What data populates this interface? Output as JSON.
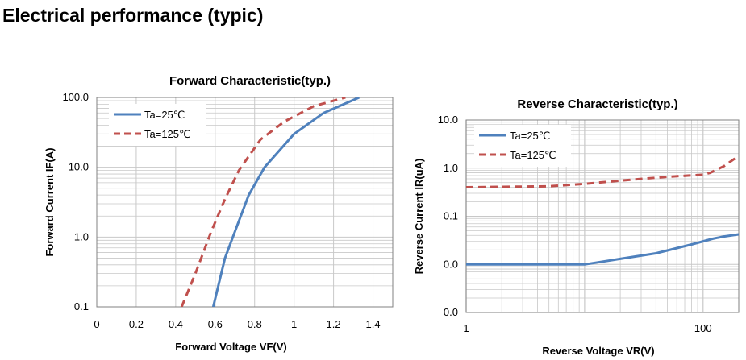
{
  "page": {
    "heading": "Electrical performance (typic)"
  },
  "colors": {
    "ta25": "#4f81bd",
    "ta125": "#c0504d",
    "grid": "#c8c8c8",
    "axis": "#808080"
  },
  "chart_data": [
    {
      "type": "line",
      "title": "Forward Characteristic(typ.)",
      "xlabel": "Forward Voltage VF(V)",
      "ylabel": "Forward Current IF(A)",
      "xscale": "linear",
      "yscale": "log",
      "xlim": [
        0,
        1.5
      ],
      "ylim": [
        0.1,
        100
      ],
      "xticks": [
        {
          "v": 0,
          "label": "0"
        },
        {
          "v": 0.2,
          "label": "0.2"
        },
        {
          "v": 0.4,
          "label": "0.4"
        },
        {
          "v": 0.6,
          "label": "0.6"
        },
        {
          "v": 0.8,
          "label": "0.8"
        },
        {
          "v": 1.0,
          "label": "1"
        },
        {
          "v": 1.2,
          "label": "1.2"
        },
        {
          "v": 1.4,
          "label": "1.4"
        }
      ],
      "yticks": [
        {
          "v": 0.1,
          "label": "0.1"
        },
        {
          "v": 1,
          "label": "1.0"
        },
        {
          "v": 10,
          "label": "10.0"
        },
        {
          "v": 100,
          "label": "100.0"
        }
      ],
      "grid": true,
      "legend": "top-left",
      "series": [
        {
          "name": "Ta=25℃",
          "style": "solid",
          "color": "#4f81bd",
          "x": [
            0.59,
            0.65,
            0.7,
            0.77,
            0.85,
            1.0,
            1.15,
            1.33
          ],
          "y": [
            0.1,
            0.5,
            1.2,
            4.0,
            10,
            30,
            60,
            100
          ]
        },
        {
          "name": "Ta=125℃",
          "style": "dashed",
          "color": "#c0504d",
          "x": [
            0.43,
            0.5,
            0.58,
            0.65,
            0.72,
            0.83,
            0.95,
            1.1,
            1.26
          ],
          "y": [
            0.1,
            0.3,
            1.2,
            3.5,
            9,
            25,
            45,
            75,
            100
          ]
        }
      ]
    },
    {
      "type": "line",
      "title": "Reverse Characteristic(typ.)",
      "xlabel": "Reverse Voltage VR(V)",
      "ylabel": "Reverse Current IR(uA)",
      "xscale": "log",
      "yscale": "log",
      "xlim": [
        1,
        200
      ],
      "ylim": [
        0.001,
        10
      ],
      "xticks": [
        {
          "v": 1,
          "label": "1"
        },
        {
          "v": 100,
          "label": "100"
        }
      ],
      "yticks": [
        {
          "v": 0.001,
          "label": "0.0"
        },
        {
          "v": 0.01,
          "label": "0.0"
        },
        {
          "v": 0.1,
          "label": "0.1"
        },
        {
          "v": 1,
          "label": "1.0"
        },
        {
          "v": 10,
          "label": "10.0"
        }
      ],
      "grid": true,
      "legend": "top-left",
      "series": [
        {
          "name": "Ta=25℃",
          "style": "solid",
          "color": "#4f81bd",
          "x": [
            1,
            10,
            20,
            40,
            80,
            120,
            150,
            200
          ],
          "y": [
            0.01,
            0.01,
            0.013,
            0.017,
            0.026,
            0.034,
            0.038,
            0.042
          ]
        },
        {
          "name": "Ta=125℃",
          "style": "dashed",
          "color": "#c0504d",
          "x": [
            1,
            5,
            10,
            20,
            50,
            100,
            115,
            150,
            200
          ],
          "y": [
            0.4,
            0.42,
            0.47,
            0.55,
            0.66,
            0.73,
            0.8,
            1.1,
            1.8
          ]
        }
      ]
    }
  ]
}
